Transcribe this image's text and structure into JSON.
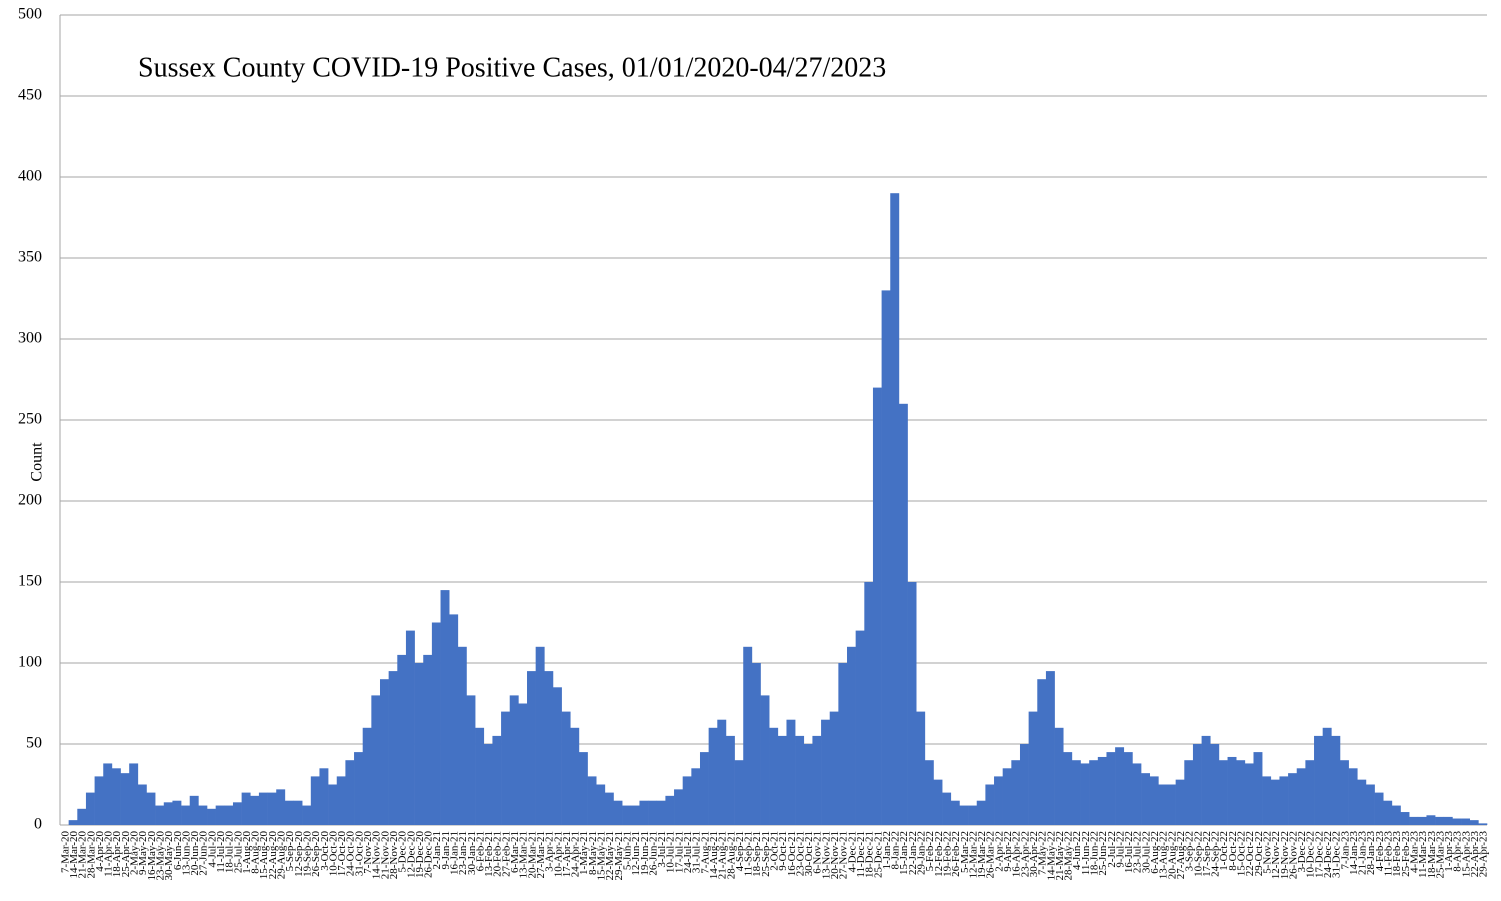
{
  "chart_data": {
    "type": "bar",
    "title": "Sussex County COVID-19 Positive Cases, 01/01/2020-04/27/2023",
    "y_label": "Count",
    "color": "#4472c4",
    "grid": true,
    "ylim": [
      0,
      500
    ],
    "yticks": [
      0,
      50,
      100,
      150,
      200,
      250,
      300,
      350,
      400,
      450,
      500
    ],
    "categories": [
      "7-Mar-20",
      "14-Mar-20",
      "21-Mar-20",
      "28-Mar-20",
      "4-Apr-20",
      "11-Apr-20",
      "18-Apr-20",
      "25-Apr-20",
      "2-May-20",
      "9-May-20",
      "16-May-20",
      "23-May-20",
      "30-May-20",
      "6-Jun-20",
      "13-Jun-20",
      "20-Jun-20",
      "27-Jun-20",
      "4-Jul-20",
      "11-Jul-20",
      "18-Jul-20",
      "25-Jul-20",
      "1-Aug-20",
      "8-Aug-20",
      "15-Aug-20",
      "22-Aug-20",
      "29-Aug-20",
      "5-Sep-20",
      "12-Sep-20",
      "19-Sep-20",
      "26-Sep-20",
      "3-Oct-20",
      "10-Oct-20",
      "17-Oct-20",
      "24-Oct-20",
      "31-Oct-20",
      "7-Nov-20",
      "14-Nov-20",
      "21-Nov-20",
      "28-Nov-20",
      "5-Dec-20",
      "12-Dec-20",
      "19-Dec-20",
      "26-Dec-20",
      "2-Jan-21",
      "9-Jan-21",
      "16-Jan-21",
      "23-Jan-21",
      "30-Jan-21",
      "6-Feb-21",
      "13-Feb-21",
      "20-Feb-21",
      "27-Feb-21",
      "6-Mar-21",
      "13-Mar-21",
      "20-Mar-21",
      "27-Mar-21",
      "3-Apr-21",
      "10-Apr-21",
      "17-Apr-21",
      "24-Apr-21",
      "1-May-21",
      "8-May-21",
      "15-May-21",
      "22-May-21",
      "29-May-21",
      "5-Jun-21",
      "12-Jun-21",
      "19-Jun-21",
      "26-Jun-21",
      "3-Jul-21",
      "10-Jul-21",
      "17-Jul-21",
      "24-Jul-21",
      "31-Jul-21",
      "7-Aug-21",
      "14-Aug-21",
      "21-Aug-21",
      "28-Aug-21",
      "4-Sep-21",
      "11-Sep-21",
      "18-Sep-21",
      "25-Sep-21",
      "2-Oct-21",
      "9-Oct-21",
      "16-Oct-21",
      "23-Oct-21",
      "30-Oct-21",
      "6-Nov-21",
      "13-Nov-21",
      "20-Nov-21",
      "27-Nov-21",
      "4-Dec-21",
      "11-Dec-21",
      "18-Dec-21",
      "25-Dec-21",
      "1-Jan-22",
      "8-Jan-22",
      "15-Jan-22",
      "22-Jan-22",
      "29-Jan-22",
      "5-Feb-22",
      "12-Feb-22",
      "19-Feb-22",
      "26-Feb-22",
      "5-Mar-22",
      "12-Mar-22",
      "19-Mar-22",
      "26-Mar-22",
      "2-Apr-22",
      "9-Apr-22",
      "16-Apr-22",
      "23-Apr-22",
      "30-Apr-22",
      "7-May-22",
      "14-May-22",
      "21-May-22",
      "28-May-22",
      "4-Jun-22",
      "11-Jun-22",
      "18-Jun-22",
      "25-Jun-22",
      "2-Jul-22",
      "9-Jul-22",
      "16-Jul-22",
      "23-Jul-22",
      "30-Jul-22",
      "6-Aug-22",
      "13-Aug-22",
      "20-Aug-22",
      "27-Aug-22",
      "3-Sep-22",
      "10-Sep-22",
      "17-Sep-22",
      "24-Sep-22",
      "1-Oct-22",
      "8-Oct-22",
      "15-Oct-22",
      "22-Oct-22",
      "29-Oct-22",
      "5-Nov-22",
      "12-Nov-22",
      "19-Nov-22",
      "26-Nov-22",
      "3-Dec-22",
      "10-Dec-22",
      "17-Dec-22",
      "24-Dec-22",
      "31-Dec-22",
      "7-Jan-23",
      "14-Jan-23",
      "21-Jan-23",
      "28-Jan-23",
      "4-Feb-23",
      "11-Feb-23",
      "18-Feb-23",
      "25-Feb-23",
      "4-Mar-23",
      "11-Mar-23",
      "18-Mar-23",
      "25-Mar-23",
      "1-Apr-23",
      "8-Apr-23",
      "15-Apr-23",
      "22-Apr-23",
      "29-Apr-23"
    ],
    "values": [
      0,
      3,
      10,
      20,
      30,
      38,
      35,
      32,
      38,
      25,
      20,
      12,
      14,
      15,
      12,
      18,
      12,
      10,
      12,
      12,
      14,
      20,
      18,
      20,
      20,
      22,
      15,
      15,
      12,
      30,
      35,
      25,
      30,
      40,
      45,
      60,
      80,
      90,
      95,
      105,
      120,
      100,
      105,
      125,
      145,
      130,
      110,
      80,
      60,
      50,
      55,
      70,
      80,
      75,
      95,
      110,
      95,
      85,
      70,
      60,
      45,
      30,
      25,
      20,
      15,
      12,
      12,
      15,
      15,
      15,
      18,
      22,
      30,
      35,
      45,
      60,
      65,
      55,
      40,
      110,
      100,
      80,
      60,
      55,
      65,
      55,
      50,
      55,
      65,
      70,
      100,
      110,
      120,
      150,
      270,
      330,
      390,
      260,
      150,
      70,
      40,
      28,
      20,
      15,
      12,
      12,
      15,
      25,
      30,
      35,
      40,
      50,
      70,
      90,
      95,
      60,
      45,
      40,
      38,
      40,
      42,
      45,
      48,
      45,
      38,
      32,
      30,
      25,
      25,
      28,
      40,
      50,
      55,
      50,
      40,
      42,
      40,
      38,
      45,
      30,
      28,
      30,
      32,
      35,
      40,
      55,
      60,
      55,
      40,
      35,
      28,
      25,
      20,
      15,
      12,
      8,
      5,
      5,
      6,
      5,
      5,
      4,
      4,
      3,
      1
    ]
  }
}
